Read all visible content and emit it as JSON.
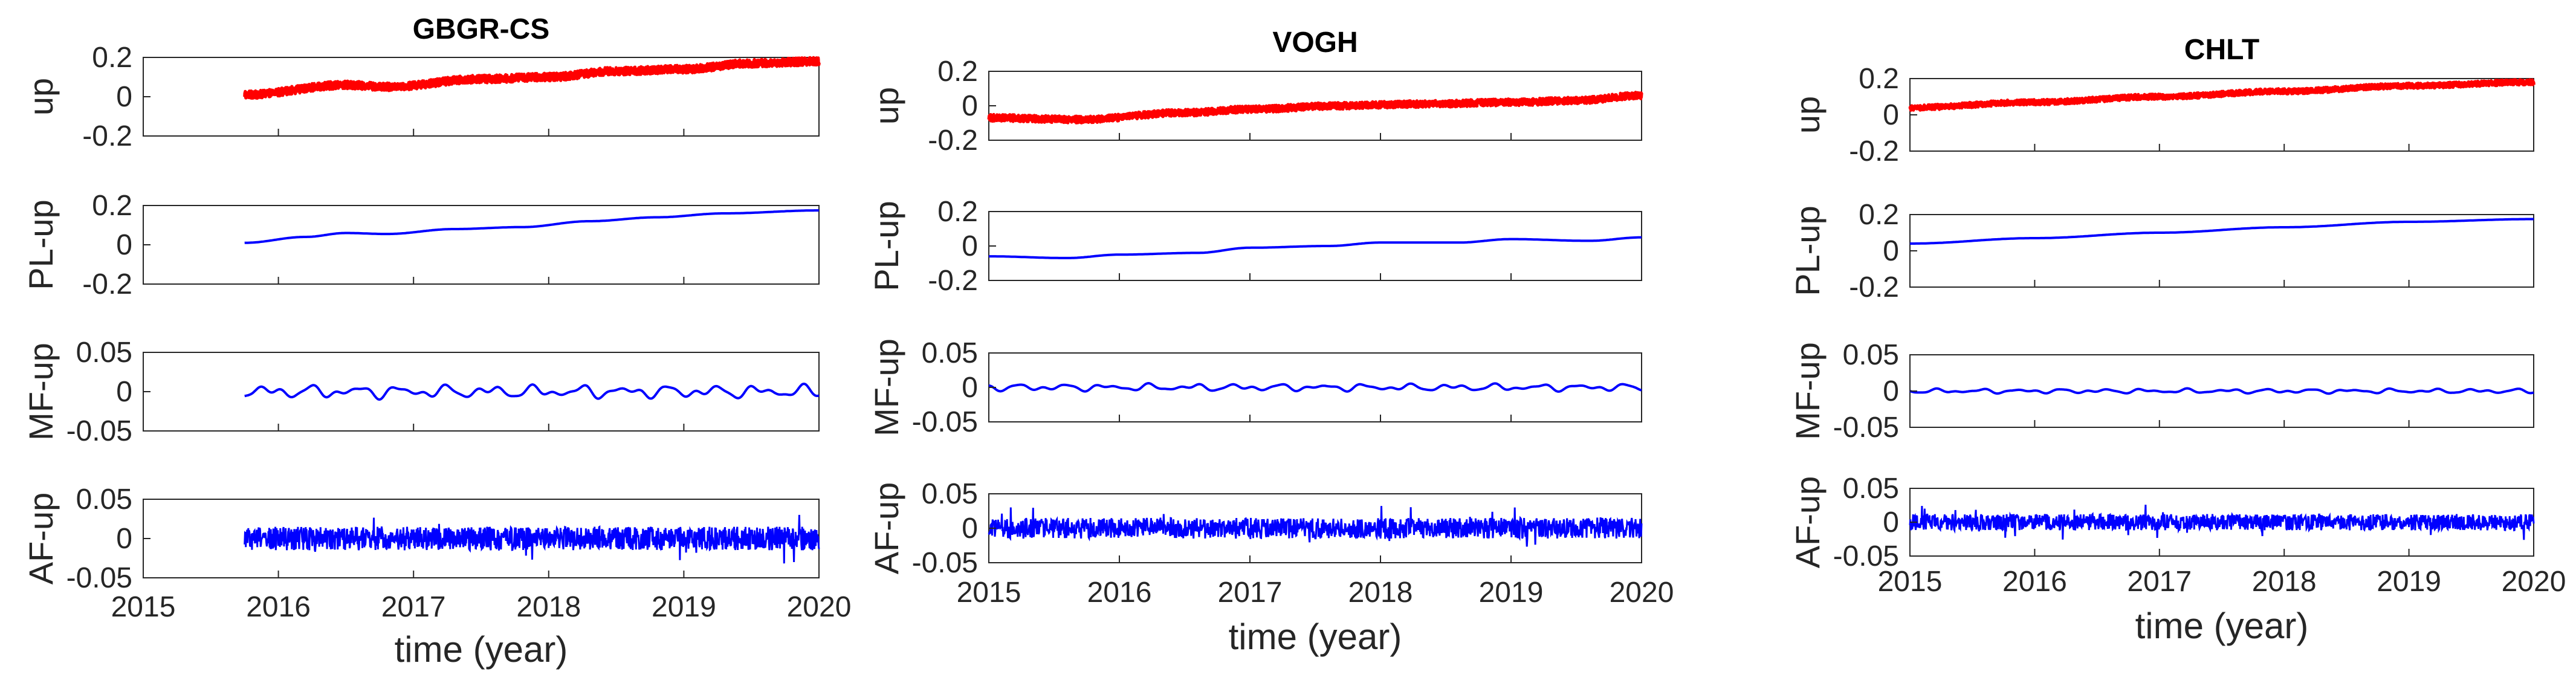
{
  "chart_data": [
    {
      "type": "line",
      "title": "GBGR-CS",
      "xlabel": "time (year)",
      "x_range": [
        2015,
        2020
      ],
      "x_ticks": [
        "2015",
        "2016",
        "2017",
        "2018",
        "2019",
        "2020"
      ],
      "data_start_year": 2015.75,
      "subplots": [
        {
          "ylabel": "up",
          "color": "#ff0000",
          "style": "noisy-band",
          "ylim": [
            -0.2,
            0.2
          ],
          "y_ticks": [
            "0.2",
            "0",
            "-0.2"
          ],
          "trend": {
            "x": [
              2015.75,
              2016.5,
              2016.8,
              2017.5,
              2018.0,
              2018.5,
              2019.0,
              2019.5,
              2020.0
            ],
            "y": [
              0.01,
              0.06,
              0.05,
              0.09,
              0.1,
              0.13,
              0.14,
              0.17,
              0.18
            ]
          },
          "noise_amplitude": 0.02
        },
        {
          "ylabel": "PL-up",
          "color": "#0000ff",
          "style": "smooth",
          "ylim": [
            -0.2,
            0.2
          ],
          "y_ticks": [
            "0.2",
            "0",
            "-0.2"
          ],
          "trend": {
            "x": [
              2015.75,
              2016.2,
              2016.5,
              2016.8,
              2017.3,
              2017.8,
              2018.3,
              2018.8,
              2019.3,
              2020.0
            ],
            "y": [
              0.01,
              0.04,
              0.06,
              0.055,
              0.08,
              0.09,
              0.12,
              0.14,
              0.16,
              0.175
            ]
          }
        },
        {
          "ylabel": "MF-up",
          "color": "#0000ff",
          "style": "oscillation",
          "ylim": [
            -0.05,
            0.05
          ],
          "y_ticks": [
            "0.05",
            "0",
            "-0.05"
          ],
          "amplitude": 0.008
        },
        {
          "ylabel": "AF-up",
          "color": "#0000ff",
          "style": "noise",
          "ylim": [
            -0.05,
            0.05
          ],
          "y_ticks": [
            "0.05",
            "0",
            "-0.05"
          ],
          "amplitude": 0.015
        }
      ]
    },
    {
      "type": "line",
      "title": "VOGH",
      "xlabel": "time (year)",
      "x_range": [
        2015,
        2020
      ],
      "x_ticks": [
        "2015",
        "2016",
        "2017",
        "2018",
        "2019",
        "2020"
      ],
      "data_start_year": 2015.0,
      "subplots": [
        {
          "ylabel": "up",
          "color": "#ff0000",
          "style": "noisy-band",
          "ylim": [
            -0.2,
            0.2
          ],
          "y_ticks": [
            "0.2",
            "0",
            "-0.2"
          ],
          "trend": {
            "x": [
              2015.0,
              2015.7,
              2016.5,
              2017.0,
              2017.7,
              2018.3,
              2019.0,
              2019.5,
              2020.0
            ],
            "y": [
              -0.07,
              -0.08,
              -0.04,
              -0.02,
              0.0,
              0.01,
              0.02,
              0.03,
              0.06
            ]
          },
          "noise_amplitude": 0.02
        },
        {
          "ylabel": "PL-up",
          "color": "#0000ff",
          "style": "smooth",
          "ylim": [
            -0.2,
            0.2
          ],
          "y_ticks": [
            "0.2",
            "0",
            "-0.2"
          ],
          "trend": {
            "x": [
              2015.0,
              2015.6,
              2016.0,
              2016.6,
              2017.0,
              2017.6,
              2018.0,
              2018.6,
              2019.0,
              2019.6,
              2020.0
            ],
            "y": [
              -0.06,
              -0.07,
              -0.05,
              -0.04,
              -0.01,
              0.0,
              0.02,
              0.02,
              0.04,
              0.03,
              0.05
            ]
          }
        },
        {
          "ylabel": "MF-up",
          "color": "#0000ff",
          "style": "oscillation",
          "ylim": [
            -0.05,
            0.05
          ],
          "y_ticks": [
            "0.05",
            "0",
            "-0.05"
          ],
          "amplitude": 0.005
        },
        {
          "ylabel": "AF-up",
          "color": "#0000ff",
          "style": "noise",
          "ylim": [
            -0.05,
            0.05
          ],
          "y_ticks": [
            "0.05",
            "0",
            "-0.05"
          ],
          "amplitude": 0.015
        }
      ]
    },
    {
      "type": "line",
      "title": "CHLT",
      "xlabel": "time (year)",
      "x_range": [
        2015,
        2020
      ],
      "x_ticks": [
        "2015",
        "2016",
        "2017",
        "2018",
        "2019",
        "2020"
      ],
      "data_start_year": 2015.0,
      "subplots": [
        {
          "ylabel": "up",
          "color": "#ff0000",
          "style": "noisy-band",
          "ylim": [
            -0.2,
            0.2
          ],
          "y_ticks": [
            "0.2",
            "0",
            "-0.2"
          ],
          "trend": {
            "x": [
              2015.0,
              2016.0,
              2017.0,
              2018.0,
              2019.0,
              2020.0
            ],
            "y": [
              0.04,
              0.07,
              0.1,
              0.13,
              0.16,
              0.18
            ]
          },
          "noise_amplitude": 0.015
        },
        {
          "ylabel": "PL-up",
          "color": "#0000ff",
          "style": "smooth",
          "ylim": [
            -0.2,
            0.2
          ],
          "y_ticks": [
            "0.2",
            "0",
            "-0.2"
          ],
          "trend": {
            "x": [
              2015.0,
              2016.0,
              2017.0,
              2018.0,
              2019.0,
              2020.0
            ],
            "y": [
              0.04,
              0.07,
              0.1,
              0.13,
              0.16,
              0.175
            ]
          }
        },
        {
          "ylabel": "MF-up",
          "color": "#0000ff",
          "style": "oscillation",
          "ylim": [
            -0.05,
            0.05
          ],
          "y_ticks": [
            "0.05",
            "0",
            "-0.05"
          ],
          "amplitude": 0.003
        },
        {
          "ylabel": "AF-up",
          "color": "#0000ff",
          "style": "noise",
          "ylim": [
            -0.05,
            0.05
          ],
          "y_ticks": [
            "0.05",
            "0",
            "-0.05"
          ],
          "amplitude": 0.012
        }
      ]
    }
  ]
}
